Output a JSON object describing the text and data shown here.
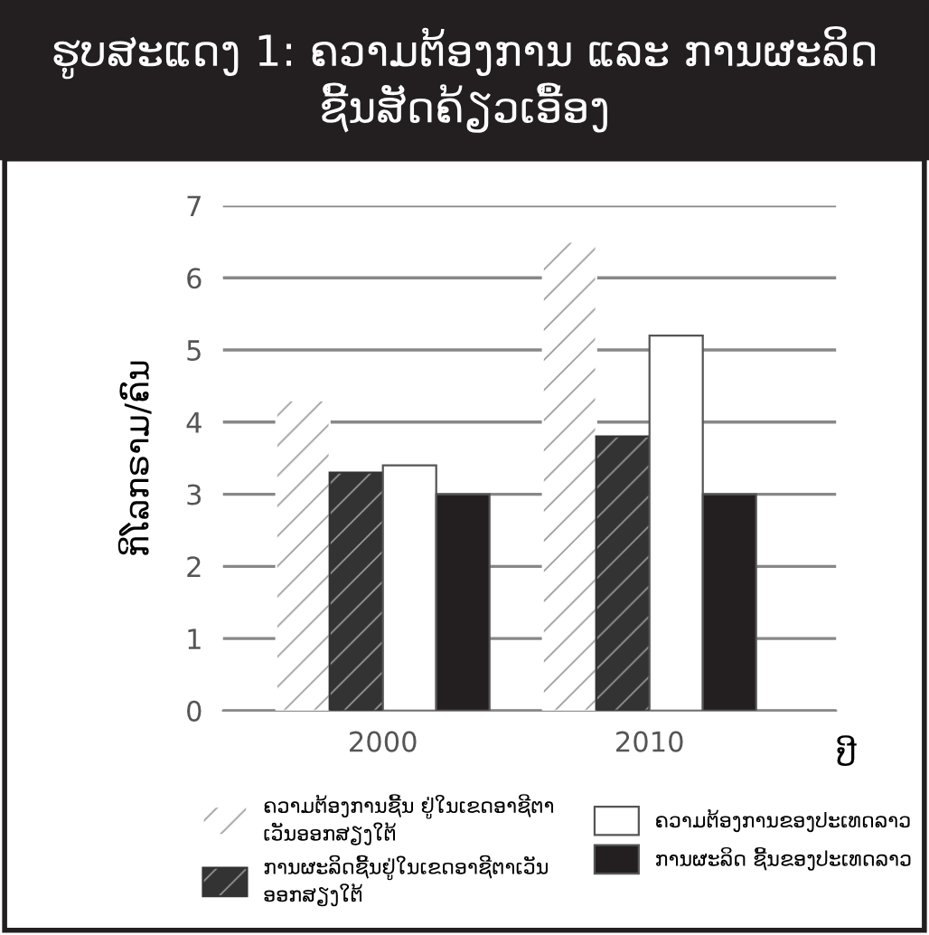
{
  "chart_data": {
    "type": "bar",
    "title": "ຮູບສະແດງ 1: ຄວາມຕ້ອງການ ແລະ ການຜະລິດ\nຊີ້ນສັດຄ້ຽວເອື້ອງ",
    "xlabel": "ປີ",
    "ylabel": "ກິໂລກຣາມ/ຄົນ",
    "categories": [
      "2000",
      "2010"
    ],
    "series": [
      {
        "name": "ຄວາມຕ້ອງການຊີ້ນ ຢູ່ໃນເຂດອາຊີຕາ\nເວັນອອກສຽງໃຕ້",
        "color": "#ffffff",
        "values": [
          4.3,
          6.5
        ]
      },
      {
        "name": "ການຜະລິດຊີ້ນຢູ່ໃນເຂດອາຊີຕາເວັນ\nອອກສຽງໃຕ້",
        "color": "#333333",
        "values": [
          3.3,
          3.8
        ]
      },
      {
        "name": "ຄວາມຕ້ອງການຂອງປະເທດລາວ",
        "color": "#ffffff",
        "values": [
          3.4,
          5.2
        ]
      },
      {
        "name": "ການຜະລິດ ຊີ້ນຂອງປະເທດລາວ",
        "color": "#231f20",
        "values": [
          3.0,
          3.0
        ]
      }
    ],
    "ylim": [
      0,
      7
    ],
    "yticks": [
      0,
      1,
      2,
      3,
      4,
      5,
      6,
      7
    ],
    "grid": "y",
    "legend": "bottom"
  }
}
